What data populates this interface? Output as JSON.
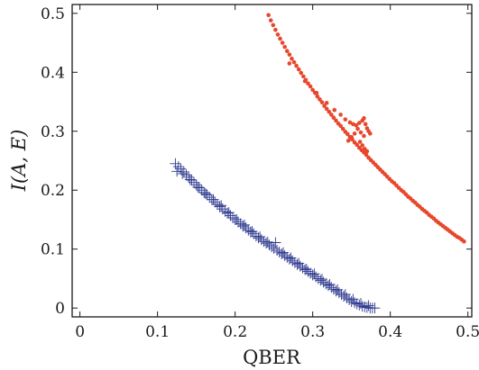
{
  "chart_data": {
    "type": "scatter",
    "xlabel": "QBER",
    "ylabel": "I(A, E)",
    "xlim": [
      -0.01,
      0.505
    ],
    "ylim": [
      -0.015,
      0.515
    ],
    "xticks": [
      0,
      0.1,
      0.2,
      0.3,
      0.4,
      0.5
    ],
    "xtick_labels": [
      "0",
      "0.1",
      "0.2",
      "0.3",
      "0.4",
      "0.5"
    ],
    "yticks": [
      0,
      0.1,
      0.2,
      0.3,
      0.4,
      0.5
    ],
    "ytick_labels": [
      "0",
      "0.1",
      "0.2",
      "0.3",
      "0.4",
      "0.5"
    ],
    "grid": false,
    "legend": "none",
    "series": [
      {
        "marker": "plus",
        "color": "#2e3a8f",
        "x": [
          0.123,
          0.127,
          0.13,
          0.134,
          0.137,
          0.14,
          0.144,
          0.147,
          0.15,
          0.154,
          0.157,
          0.16,
          0.164,
          0.167,
          0.17,
          0.174,
          0.177,
          0.18,
          0.184,
          0.187,
          0.19,
          0.194,
          0.197,
          0.2,
          0.204,
          0.207,
          0.21,
          0.214,
          0.217,
          0.22,
          0.224,
          0.227,
          0.23,
          0.234,
          0.237,
          0.24,
          0.244,
          0.247,
          0.25,
          0.254,
          0.257,
          0.26,
          0.264,
          0.267,
          0.27,
          0.274,
          0.277,
          0.28,
          0.284,
          0.287,
          0.29,
          0.294,
          0.297,
          0.3,
          0.304,
          0.307,
          0.31,
          0.314,
          0.317,
          0.32,
          0.324,
          0.327,
          0.33,
          0.334,
          0.337,
          0.34,
          0.344,
          0.347,
          0.35,
          0.354,
          0.357,
          0.36,
          0.364,
          0.367,
          0.37,
          0.374,
          0.377,
          0.38,
          0.125,
          0.132,
          0.142,
          0.152,
          0.162,
          0.172,
          0.182,
          0.192,
          0.202,
          0.212,
          0.222,
          0.232,
          0.242,
          0.252,
          0.262,
          0.272,
          0.282,
          0.292,
          0.302,
          0.312,
          0.322,
          0.332,
          0.342,
          0.352,
          0.362,
          0.372
        ],
        "y": [
          0.245,
          0.24,
          0.236,
          0.231,
          0.226,
          0.222,
          0.217,
          0.213,
          0.209,
          0.204,
          0.2,
          0.196,
          0.192,
          0.188,
          0.184,
          0.18,
          0.176,
          0.172,
          0.168,
          0.164,
          0.161,
          0.157,
          0.153,
          0.15,
          0.146,
          0.143,
          0.139,
          0.136,
          0.132,
          0.129,
          0.126,
          0.122,
          0.119,
          0.116,
          0.113,
          0.11,
          0.107,
          0.104,
          0.101,
          0.098,
          0.095,
          0.092,
          0.089,
          0.086,
          0.083,
          0.08,
          0.077,
          0.074,
          0.071,
          0.068,
          0.065,
          0.062,
          0.059,
          0.056,
          0.053,
          0.05,
          0.047,
          0.044,
          0.041,
          0.038,
          0.035,
          0.032,
          0.029,
          0.026,
          0.023,
          0.02,
          0.017,
          0.014,
          0.011,
          0.009,
          0.007,
          0.005,
          0.003,
          0.002,
          0.001,
          0.0,
          0.0,
          0.0,
          0.232,
          0.228,
          0.218,
          0.205,
          0.194,
          0.184,
          0.174,
          0.162,
          0.15,
          0.141,
          0.13,
          0.121,
          0.112,
          0.111,
          0.094,
          0.085,
          0.076,
          0.066,
          0.058,
          0.049,
          0.04,
          0.031,
          0.023,
          0.015,
          0.008,
          0.004
        ]
      },
      {
        "marker": "dot",
        "color": "#e8472c",
        "x": [
          0.243,
          0.246,
          0.249,
          0.252,
          0.255,
          0.258,
          0.261,
          0.264,
          0.267,
          0.27,
          0.273,
          0.276,
          0.279,
          0.282,
          0.285,
          0.288,
          0.291,
          0.294,
          0.297,
          0.3,
          0.303,
          0.306,
          0.309,
          0.312,
          0.315,
          0.318,
          0.321,
          0.324,
          0.327,
          0.33,
          0.333,
          0.336,
          0.339,
          0.342,
          0.345,
          0.348,
          0.351,
          0.354,
          0.357,
          0.36,
          0.363,
          0.366,
          0.369,
          0.372,
          0.375,
          0.378,
          0.381,
          0.384,
          0.387,
          0.39,
          0.393,
          0.396,
          0.399,
          0.402,
          0.405,
          0.408,
          0.411,
          0.414,
          0.417,
          0.42,
          0.423,
          0.426,
          0.429,
          0.432,
          0.435,
          0.438,
          0.441,
          0.444,
          0.447,
          0.45,
          0.453,
          0.456,
          0.459,
          0.462,
          0.465,
          0.468,
          0.471,
          0.474,
          0.477,
          0.48,
          0.483,
          0.486,
          0.489,
          0.492,
          0.495,
          0.27,
          0.29,
          0.305,
          0.318,
          0.328,
          0.336,
          0.342,
          0.348,
          0.352,
          0.356,
          0.36,
          0.364,
          0.366,
          0.368,
          0.37,
          0.372,
          0.374,
          0.361,
          0.364,
          0.367,
          0.37,
          0.366,
          0.362,
          0.358,
          0.354,
          0.35,
          0.346
        ],
        "y": [
          0.497,
          0.488,
          0.48,
          0.472,
          0.464,
          0.457,
          0.45,
          0.443,
          0.436,
          0.43,
          0.423,
          0.417,
          0.411,
          0.405,
          0.399,
          0.393,
          0.387,
          0.381,
          0.376,
          0.37,
          0.365,
          0.359,
          0.354,
          0.349,
          0.343,
          0.338,
          0.333,
          0.328,
          0.323,
          0.318,
          0.313,
          0.309,
          0.304,
          0.299,
          0.295,
          0.29,
          0.286,
          0.281,
          0.277,
          0.272,
          0.268,
          0.264,
          0.26,
          0.255,
          0.251,
          0.247,
          0.243,
          0.239,
          0.235,
          0.231,
          0.227,
          0.223,
          0.219,
          0.215,
          0.212,
          0.208,
          0.204,
          0.2,
          0.197,
          0.193,
          0.189,
          0.186,
          0.182,
          0.179,
          0.175,
          0.172,
          0.168,
          0.165,
          0.162,
          0.158,
          0.155,
          0.152,
          0.148,
          0.145,
          0.142,
          0.139,
          0.136,
          0.133,
          0.13,
          0.127,
          0.124,
          0.121,
          0.119,
          0.116,
          0.113,
          0.415,
          0.385,
          0.365,
          0.348,
          0.336,
          0.328,
          0.32,
          0.315,
          0.312,
          0.31,
          0.314,
          0.318,
          0.322,
          0.312,
          0.305,
          0.3,
          0.296,
          0.282,
          0.276,
          0.27,
          0.266,
          0.292,
          0.298,
          0.304,
          0.296,
          0.29,
          0.284
        ]
      }
    ]
  }
}
